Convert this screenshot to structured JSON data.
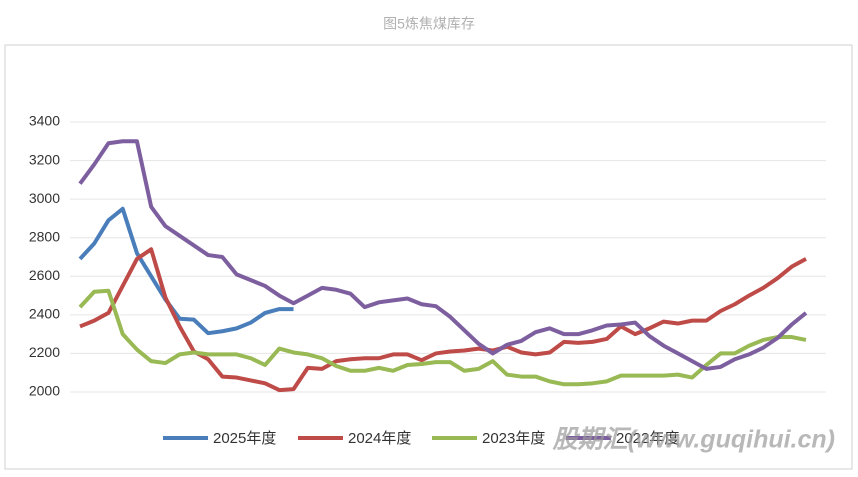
{
  "chart_data": {
    "type": "line",
    "title": "图5炼焦煤库存",
    "categories": [
      null,
      null,
      null,
      null,
      null,
      null,
      null,
      null,
      null,
      null,
      null,
      null,
      null,
      null,
      null,
      null,
      null,
      null,
      null,
      null,
      null,
      null,
      null,
      null,
      null,
      null,
      null,
      null,
      null,
      null,
      null,
      null,
      null,
      null,
      null,
      null,
      null,
      null,
      null,
      null,
      null,
      null,
      null,
      null,
      null,
      null,
      null,
      null,
      null,
      null,
      null,
      null
    ],
    "series": [
      {
        "name": "2025年度",
        "color": "#4a7ebb",
        "values": [
          2690,
          2770,
          2890,
          2950,
          2720,
          2600,
          2480,
          2380,
          2375,
          2305,
          2315,
          2330,
          2360,
          2410,
          2430,
          2430,
          null,
          null,
          null,
          null,
          null,
          null,
          null,
          null,
          null,
          null,
          null,
          null,
          null,
          null,
          null,
          null,
          null,
          null,
          null,
          null,
          null,
          null,
          null,
          null,
          null,
          null,
          null,
          null,
          null,
          null,
          null,
          null,
          null,
          null,
          null,
          null
        ]
      },
      {
        "name": "2024年度",
        "color": "#be4b48",
        "values": [
          2340,
          2370,
          2410,
          2550,
          2690,
          2740,
          2490,
          2340,
          2210,
          2170,
          2080,
          2075,
          2060,
          2045,
          2010,
          2015,
          2125,
          2120,
          2160,
          2170,
          2175,
          2175,
          2195,
          2195,
          2165,
          2200,
          2210,
          2215,
          2225,
          2215,
          2235,
          2205,
          2195,
          2205,
          2260,
          2255,
          2260,
          2275,
          2340,
          2300,
          2330,
          2365,
          2355,
          2370,
          2370,
          2420,
          2455,
          2500,
          2540,
          2590,
          2650,
          2690
        ]
      },
      {
        "name": "2023年度",
        "color": "#98b954",
        "values": [
          2440,
          2520,
          2525,
          2300,
          2220,
          2160,
          2150,
          2195,
          2205,
          2195,
          2195,
          2195,
          2175,
          2140,
          2225,
          2205,
          2195,
          2175,
          2135,
          2110,
          2110,
          2125,
          2110,
          2140,
          2145,
          2155,
          2155,
          2110,
          2120,
          2160,
          2090,
          2080,
          2080,
          2055,
          2040,
          2040,
          2045,
          2055,
          2085,
          2085,
          2085,
          2085,
          2090,
          2075,
          2140,
          2200,
          2200,
          2240,
          2270,
          2285,
          2285,
          2270
        ]
      },
      {
        "name": "2022年度",
        "color": "#7d5fa0",
        "values": [
          3080,
          3180,
          3290,
          3300,
          3300,
          2960,
          2860,
          2810,
          2760,
          2710,
          2700,
          2610,
          2580,
          2550,
          2500,
          2460,
          2500,
          2540,
          2530,
          2510,
          2440,
          2465,
          2475,
          2485,
          2455,
          2445,
          2390,
          2320,
          2250,
          2200,
          2245,
          2265,
          2310,
          2330,
          2300,
          2300,
          2320,
          2345,
          2350,
          2360,
          2290,
          2240,
          2200,
          2160,
          2120,
          2130,
          2170,
          2195,
          2230,
          2280,
          2350,
          2410
        ]
      }
    ],
    "ylim": [
      2000,
      3400
    ],
    "yticks": [
      2000,
      2200,
      2400,
      2600,
      2800,
      3000,
      3200,
      3400
    ],
    "grid": true,
    "legend": "bottom",
    "watermark": "股期汇(www.guqihui.cn)"
  }
}
